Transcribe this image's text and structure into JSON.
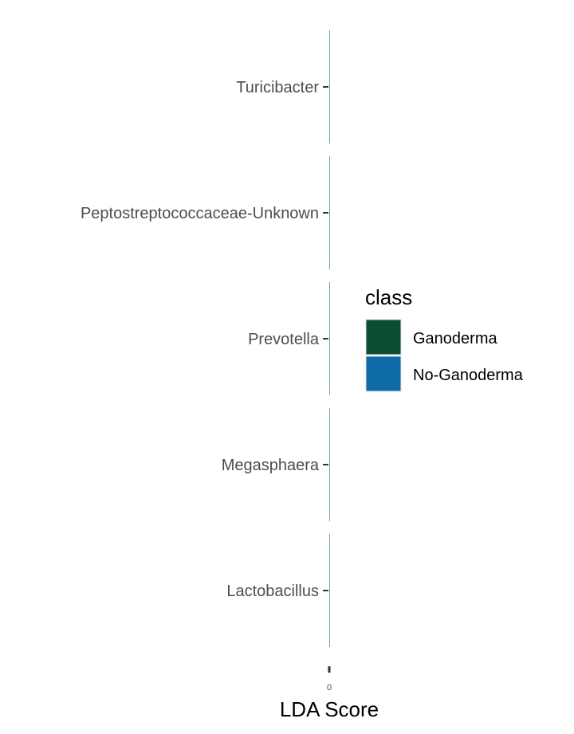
{
  "chart_data": {
    "type": "bar",
    "orientation": "horizontal",
    "categories": [
      "Turicibacter",
      "Peptostreptococcaceae-Unknown",
      "Prevotella",
      "Megasphaera",
      "Lactobacillus"
    ],
    "series": [
      {
        "name": "Ganoderma",
        "color": "#0b4d33",
        "values": [
          0,
          0,
          0,
          0,
          0
        ]
      },
      {
        "name": "No-Ganoderma",
        "color": "#0f6ba8",
        "values": [
          0,
          0,
          0,
          0,
          0
        ]
      }
    ],
    "bar_outline_color": "#6fa3b4",
    "xlabel": "LDA Score",
    "ylabel": "",
    "grid": false,
    "legend": {
      "title": "class",
      "position": "right",
      "entries": [
        {
          "label": "Ganoderma",
          "color": "#0b4d33"
        },
        {
          "label": "No-Ganoderma",
          "color": "#0f6ba8"
        }
      ]
    }
  }
}
